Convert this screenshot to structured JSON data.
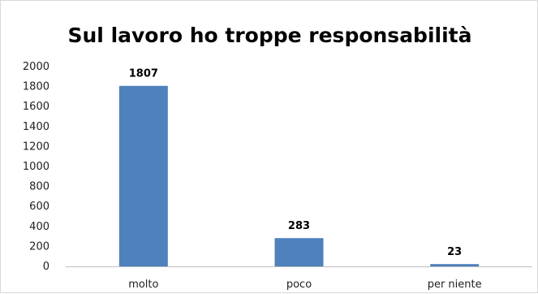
{
  "chart_data": {
    "type": "bar",
    "title": "Sul lavoro ho troppe responsabilità",
    "xlabel": "",
    "ylabel": "",
    "categories": [
      "molto",
      "poco",
      "per niente"
    ],
    "values": [
      1807,
      283,
      23
    ],
    "data_labels": [
      "1807",
      "283",
      "23"
    ],
    "ylim": [
      0,
      2000
    ],
    "yticks": [
      0,
      200,
      400,
      600,
      800,
      1000,
      1200,
      1400,
      1600,
      1800,
      2000
    ],
    "ytick_labels": [
      "0",
      "200",
      "400",
      "600",
      "800",
      "1000",
      "1200",
      "1400",
      "1600",
      "1800",
      "2000"
    ],
    "grid": false,
    "legend": "none",
    "bar_color": "#4f81bd"
  }
}
